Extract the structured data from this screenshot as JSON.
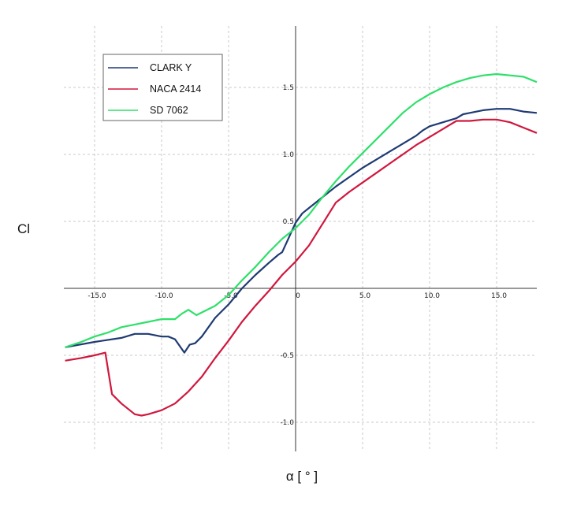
{
  "chart_data": {
    "type": "line",
    "title": "",
    "xlabel": "α [ ° ]",
    "ylabel": "Cl",
    "xlim": [
      -17.2,
      18.0
    ],
    "ylim": [
      -1.22,
      1.95
    ],
    "x_ticks": [
      -15,
      -10,
      -5,
      0,
      5,
      10,
      15
    ],
    "x_tick_labels": [
      "-15.0",
      "-10.0",
      "-5.0",
      "0",
      "5.0",
      "10.0",
      "15.0"
    ],
    "y_ticks": [
      -1,
      -0.5,
      0.5,
      1,
      1.5
    ],
    "y_tick_labels": [
      "-1.0",
      "-0.5",
      "0.5",
      "1.0",
      "1.5"
    ],
    "grid": true,
    "legend_position": "top-left",
    "series": [
      {
        "name": "CLARK Y",
        "color": "#1f3a73",
        "points": [
          [
            -17.2,
            -0.44
          ],
          [
            -15,
            -0.4
          ],
          [
            -13,
            -0.37
          ],
          [
            -12,
            -0.34
          ],
          [
            -11,
            -0.34
          ],
          [
            -10,
            -0.36
          ],
          [
            -9.5,
            -0.36
          ],
          [
            -9,
            -0.38
          ],
          [
            -8.3,
            -0.48
          ],
          [
            -7.9,
            -0.42
          ],
          [
            -7.5,
            -0.41
          ],
          [
            -7,
            -0.36
          ],
          [
            -6,
            -0.22
          ],
          [
            -5,
            -0.12
          ],
          [
            -4,
            0.0
          ],
          [
            -3,
            0.1
          ],
          [
            -2,
            0.19
          ],
          [
            -1.3,
            0.25
          ],
          [
            -1,
            0.27
          ],
          [
            -0.5,
            0.38
          ],
          [
            0,
            0.49
          ],
          [
            0.5,
            0.56
          ],
          [
            1,
            0.6
          ],
          [
            2,
            0.68
          ],
          [
            3,
            0.76
          ],
          [
            4,
            0.83
          ],
          [
            5,
            0.9
          ],
          [
            6,
            0.96
          ],
          [
            7,
            1.02
          ],
          [
            8,
            1.08
          ],
          [
            9,
            1.14
          ],
          [
            9.5,
            1.18
          ],
          [
            10,
            1.21
          ],
          [
            11,
            1.24
          ],
          [
            12,
            1.27
          ],
          [
            12.5,
            1.3
          ],
          [
            13,
            1.31
          ],
          [
            14,
            1.33
          ],
          [
            15,
            1.34
          ],
          [
            16,
            1.34
          ],
          [
            17,
            1.32
          ],
          [
            18,
            1.31
          ]
        ]
      },
      {
        "name": "NACA 2414",
        "color": "#d0173d",
        "points": [
          [
            -17.2,
            -0.54
          ],
          [
            -16,
            -0.52
          ],
          [
            -15,
            -0.5
          ],
          [
            -14.2,
            -0.48
          ],
          [
            -13.7,
            -0.79
          ],
          [
            -13,
            -0.86
          ],
          [
            -12,
            -0.94
          ],
          [
            -11.5,
            -0.95
          ],
          [
            -11,
            -0.94
          ],
          [
            -10,
            -0.91
          ],
          [
            -9,
            -0.86
          ],
          [
            -8,
            -0.77
          ],
          [
            -7,
            -0.66
          ],
          [
            -6,
            -0.52
          ],
          [
            -5,
            -0.39
          ],
          [
            -4,
            -0.25
          ],
          [
            -3,
            -0.13
          ],
          [
            -2,
            -0.02
          ],
          [
            -1,
            0.1
          ],
          [
            0,
            0.2
          ],
          [
            1,
            0.32
          ],
          [
            2,
            0.48
          ],
          [
            3,
            0.64
          ],
          [
            4,
            0.72
          ],
          [
            5,
            0.79
          ],
          [
            6,
            0.86
          ],
          [
            7,
            0.93
          ],
          [
            8,
            1.0
          ],
          [
            9,
            1.07
          ],
          [
            10,
            1.13
          ],
          [
            11,
            1.19
          ],
          [
            11.5,
            1.22
          ],
          [
            12,
            1.25
          ],
          [
            13,
            1.25
          ],
          [
            14,
            1.26
          ],
          [
            15,
            1.26
          ],
          [
            16,
            1.24
          ],
          [
            17,
            1.2
          ],
          [
            18,
            1.16
          ]
        ]
      },
      {
        "name": "SD 7062",
        "color": "#2ee06a",
        "points": [
          [
            -17.2,
            -0.44
          ],
          [
            -16,
            -0.4
          ],
          [
            -15,
            -0.36
          ],
          [
            -14,
            -0.33
          ],
          [
            -13,
            -0.29
          ],
          [
            -12,
            -0.27
          ],
          [
            -11,
            -0.25
          ],
          [
            -10,
            -0.23
          ],
          [
            -9,
            -0.23
          ],
          [
            -8.5,
            -0.19
          ],
          [
            -8,
            -0.16
          ],
          [
            -7.4,
            -0.2
          ],
          [
            -7,
            -0.18
          ],
          [
            -6,
            -0.13
          ],
          [
            -5,
            -0.05
          ],
          [
            -4,
            0.06
          ],
          [
            -3,
            0.16
          ],
          [
            -2,
            0.27
          ],
          [
            -1,
            0.37
          ],
          [
            0,
            0.45
          ],
          [
            1,
            0.55
          ],
          [
            2,
            0.68
          ],
          [
            3,
            0.8
          ],
          [
            4,
            0.91
          ],
          [
            5,
            1.01
          ],
          [
            6,
            1.11
          ],
          [
            7,
            1.21
          ],
          [
            8,
            1.31
          ],
          [
            9,
            1.39
          ],
          [
            10,
            1.45
          ],
          [
            11,
            1.5
          ],
          [
            12,
            1.54
          ],
          [
            13,
            1.57
          ],
          [
            14,
            1.59
          ],
          [
            15,
            1.6
          ],
          [
            16,
            1.59
          ],
          [
            17,
            1.58
          ],
          [
            18,
            1.54
          ]
        ]
      }
    ]
  }
}
